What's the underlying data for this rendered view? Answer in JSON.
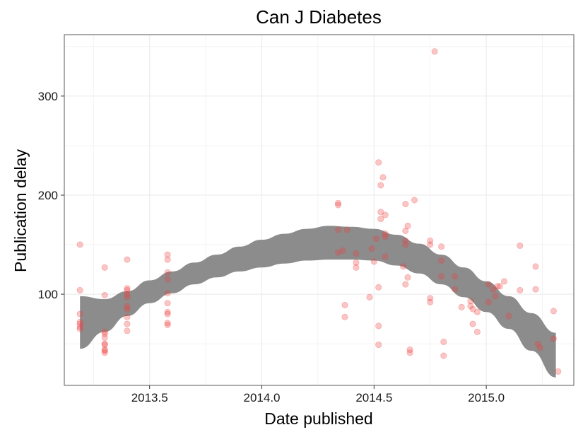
{
  "chart_data": {
    "type": "scatter",
    "title": "Can J Diabetes",
    "xlabel": "Date published",
    "ylabel": "Publication delay",
    "xlim": [
      2013.12,
      2015.39
    ],
    "ylim": [
      8,
      362
    ],
    "x_ticks": [
      2013.5,
      2014.0,
      2014.5,
      2015.0
    ],
    "x_tick_labels": [
      "2013.5",
      "2014.0",
      "2014.5",
      "2015.0"
    ],
    "y_ticks": [
      100,
      200,
      300
    ],
    "y_tick_labels": [
      "100",
      "200",
      "300"
    ],
    "grid": true,
    "legend": "none",
    "colors": {
      "points": "#f04040",
      "smooth_band": "#8c8c8c",
      "grid": "#ebebeb",
      "panel_border": "#7f7f7f"
    },
    "points": [
      {
        "x": 2013.19,
        "y": 150
      },
      {
        "x": 2013.19,
        "y": 104
      },
      {
        "x": 2013.19,
        "y": 80
      },
      {
        "x": 2013.19,
        "y": 72
      },
      {
        "x": 2013.19,
        "y": 70
      },
      {
        "x": 2013.19,
        "y": 67
      },
      {
        "x": 2013.19,
        "y": 65
      },
      {
        "x": 2013.3,
        "y": 127
      },
      {
        "x": 2013.3,
        "y": 99
      },
      {
        "x": 2013.3,
        "y": 62
      },
      {
        "x": 2013.3,
        "y": 60
      },
      {
        "x": 2013.3,
        "y": 56
      },
      {
        "x": 2013.3,
        "y": 50
      },
      {
        "x": 2013.3,
        "y": 49
      },
      {
        "x": 2013.3,
        "y": 44
      },
      {
        "x": 2013.3,
        "y": 43
      },
      {
        "x": 2013.3,
        "y": 41
      },
      {
        "x": 2013.4,
        "y": 135
      },
      {
        "x": 2013.4,
        "y": 106
      },
      {
        "x": 2013.4,
        "y": 104
      },
      {
        "x": 2013.4,
        "y": 100
      },
      {
        "x": 2013.4,
        "y": 97
      },
      {
        "x": 2013.4,
        "y": 88
      },
      {
        "x": 2013.4,
        "y": 85
      },
      {
        "x": 2013.4,
        "y": 77
      },
      {
        "x": 2013.4,
        "y": 70
      },
      {
        "x": 2013.4,
        "y": 63
      },
      {
        "x": 2013.58,
        "y": 140
      },
      {
        "x": 2013.58,
        "y": 135
      },
      {
        "x": 2013.58,
        "y": 122
      },
      {
        "x": 2013.58,
        "y": 115
      },
      {
        "x": 2013.58,
        "y": 101
      },
      {
        "x": 2013.58,
        "y": 91
      },
      {
        "x": 2013.58,
        "y": 82
      },
      {
        "x": 2013.58,
        "y": 80
      },
      {
        "x": 2013.58,
        "y": 71
      },
      {
        "x": 2013.58,
        "y": 69
      },
      {
        "x": 2014.34,
        "y": 192
      },
      {
        "x": 2014.34,
        "y": 190
      },
      {
        "x": 2014.34,
        "y": 165
      },
      {
        "x": 2014.34,
        "y": 142
      },
      {
        "x": 2014.36,
        "y": 144
      },
      {
        "x": 2014.37,
        "y": 89
      },
      {
        "x": 2014.37,
        "y": 77
      },
      {
        "x": 2014.38,
        "y": 165
      },
      {
        "x": 2014.42,
        "y": 141
      },
      {
        "x": 2014.42,
        "y": 132
      },
      {
        "x": 2014.42,
        "y": 127
      },
      {
        "x": 2014.48,
        "y": 97
      },
      {
        "x": 2014.49,
        "y": 146
      },
      {
        "x": 2014.5,
        "y": 133
      },
      {
        "x": 2014.51,
        "y": 156
      },
      {
        "x": 2014.52,
        "y": 233
      },
      {
        "x": 2014.52,
        "y": 107
      },
      {
        "x": 2014.52,
        "y": 68
      },
      {
        "x": 2014.52,
        "y": 49
      },
      {
        "x": 2014.53,
        "y": 210
      },
      {
        "x": 2014.53,
        "y": 183
      },
      {
        "x": 2014.54,
        "y": 218
      },
      {
        "x": 2014.53,
        "y": 176
      },
      {
        "x": 2014.55,
        "y": 180
      },
      {
        "x": 2014.55,
        "y": 161
      },
      {
        "x": 2014.55,
        "y": 158
      },
      {
        "x": 2014.55,
        "y": 138
      },
      {
        "x": 2014.64,
        "y": 191
      },
      {
        "x": 2014.64,
        "y": 164
      },
      {
        "x": 2014.64,
        "y": 154
      },
      {
        "x": 2014.64,
        "y": 150
      },
      {
        "x": 2014.63,
        "y": 128
      },
      {
        "x": 2014.64,
        "y": 110
      },
      {
        "x": 2014.65,
        "y": 169
      },
      {
        "x": 2014.65,
        "y": 117
      },
      {
        "x": 2014.66,
        "y": 44
      },
      {
        "x": 2014.66,
        "y": 41
      },
      {
        "x": 2014.68,
        "y": 195
      },
      {
        "x": 2014.75,
        "y": 154
      },
      {
        "x": 2014.75,
        "y": 150
      },
      {
        "x": 2014.75,
        "y": 96
      },
      {
        "x": 2014.75,
        "y": 92
      },
      {
        "x": 2014.77,
        "y": 345
      },
      {
        "x": 2014.8,
        "y": 148
      },
      {
        "x": 2014.8,
        "y": 134
      },
      {
        "x": 2014.8,
        "y": 118
      },
      {
        "x": 2014.81,
        "y": 52
      },
      {
        "x": 2014.81,
        "y": 38
      },
      {
        "x": 2014.86,
        "y": 118
      },
      {
        "x": 2014.86,
        "y": 105
      },
      {
        "x": 2014.89,
        "y": 87
      },
      {
        "x": 2014.93,
        "y": 93
      },
      {
        "x": 2014.93,
        "y": 88
      },
      {
        "x": 2014.94,
        "y": 85
      },
      {
        "x": 2014.94,
        "y": 70
      },
      {
        "x": 2014.96,
        "y": 82
      },
      {
        "x": 2014.96,
        "y": 62
      },
      {
        "x": 2015.01,
        "y": 110
      },
      {
        "x": 2015.01,
        "y": 92
      },
      {
        "x": 2015.03,
        "y": 105
      },
      {
        "x": 2015.04,
        "y": 98
      },
      {
        "x": 2015.05,
        "y": 108
      },
      {
        "x": 2015.06,
        "y": 108
      },
      {
        "x": 2015.08,
        "y": 113
      },
      {
        "x": 2015.1,
        "y": 78
      },
      {
        "x": 2015.15,
        "y": 149
      },
      {
        "x": 2015.15,
        "y": 104
      },
      {
        "x": 2015.22,
        "y": 128
      },
      {
        "x": 2015.22,
        "y": 105
      },
      {
        "x": 2015.23,
        "y": 50
      },
      {
        "x": 2015.24,
        "y": 46
      },
      {
        "x": 2015.3,
        "y": 83
      },
      {
        "x": 2015.3,
        "y": 55
      },
      {
        "x": 2015.32,
        "y": 22
      }
    ],
    "smooth_band": {
      "x": [
        2013.19,
        2013.3,
        2013.4,
        2013.5,
        2013.6,
        2013.7,
        2013.8,
        2013.9,
        2014.0,
        2014.1,
        2014.2,
        2014.3,
        2014.4,
        2014.5,
        2014.6,
        2014.7,
        2014.8,
        2014.9,
        2015.0,
        2015.1,
        2015.2,
        2015.31
      ],
      "upper": [
        98,
        95,
        103,
        114,
        123,
        132,
        140,
        148,
        155,
        161,
        166,
        169,
        168,
        166,
        160,
        151,
        140,
        127,
        113,
        98,
        81,
        61
      ],
      "lower": [
        45,
        62,
        78,
        91,
        101,
        110,
        117,
        123,
        127,
        131,
        134,
        135,
        135,
        134,
        129,
        121,
        110,
        97,
        82,
        65,
        43,
        16
      ]
    }
  }
}
